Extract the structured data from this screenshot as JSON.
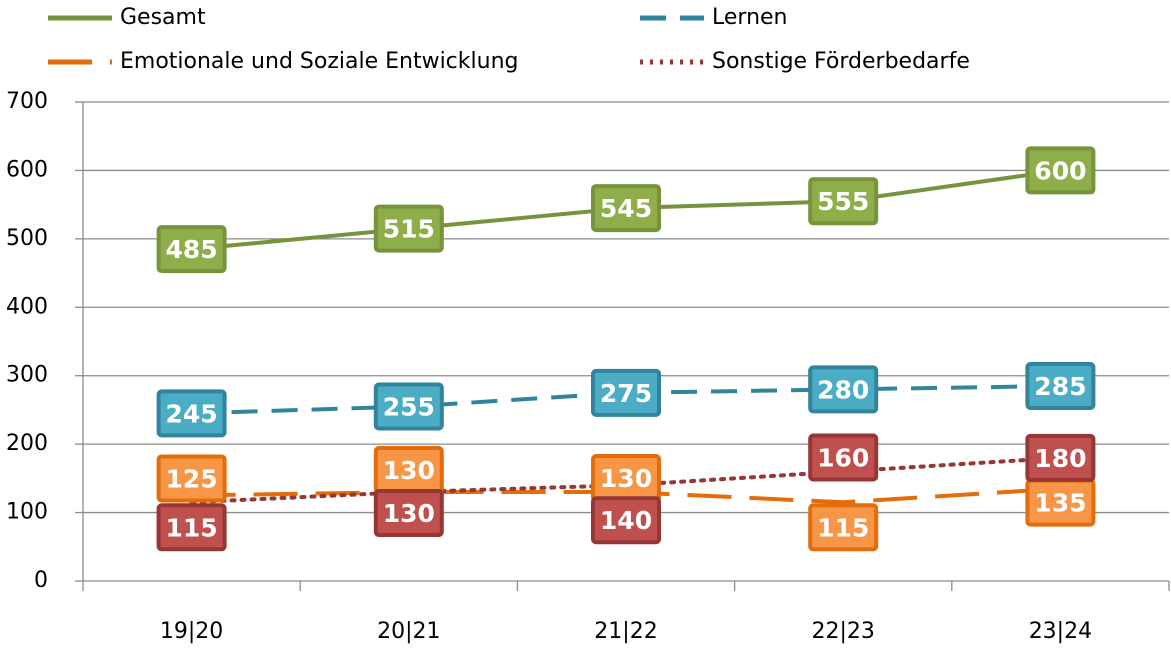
{
  "chart_data": {
    "type": "line",
    "categories": [
      "19|20",
      "20|21",
      "21|22",
      "22|23",
      "23|24"
    ],
    "series": [
      {
        "name": "Gesamt",
        "color": "#77933c",
        "label_fill": "#8fae4a",
        "dash": "solid",
        "values": [
          485,
          515,
          545,
          555,
          600
        ]
      },
      {
        "name": "Lernen",
        "color": "#31849b",
        "label_fill": "#4bacc6",
        "dash": "dashed",
        "values": [
          245,
          255,
          275,
          280,
          285
        ]
      },
      {
        "name": "Emotionale und Soziale Entwicklung",
        "color": "#e46c0a",
        "label_fill": "#f79646",
        "dash": "long-dashed",
        "values": [
          125,
          130,
          130,
          115,
          135
        ]
      },
      {
        "name": "Sonstige Förderbedarfe",
        "color": "#953735",
        "label_fill": "#c0504d",
        "dash": "dotted",
        "values": [
          115,
          130,
          140,
          160,
          180
        ]
      }
    ],
    "ylim": [
      0,
      700
    ],
    "yticks": [
      0,
      100,
      200,
      300,
      400,
      500,
      600,
      700
    ],
    "grid": true,
    "legend": "top"
  }
}
